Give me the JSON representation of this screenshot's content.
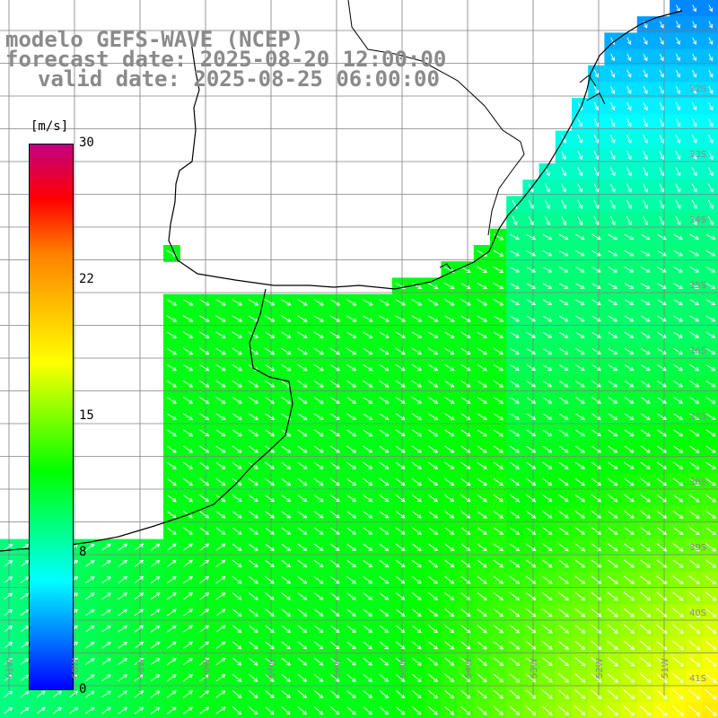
{
  "map": {
    "title_lines": [
      "modelo GEFS-WAVE (NCEP)",
      "forecast date: 2025-08-20 12:00:00",
      "valid date: 2025-08-25 06:00:00"
    ],
    "variable_unit": "[m/s]",
    "colorbar": {
      "range": [
        0,
        30
      ],
      "tick_labels": [
        "30",
        "22",
        "15",
        "8",
        "0"
      ],
      "colors": [
        "#0000ff",
        "#0080ff",
        "#00ffff",
        "#00ff80",
        "#00ff00",
        "#80ff00",
        "#ffff00",
        "#ffc000",
        "#ff8000",
        "#ff0000",
        "#c00080"
      ]
    },
    "grid": {
      "lat_labels": [
        "32S",
        "33S",
        "34S",
        "35S",
        "36S",
        "37S",
        "38S",
        "39S",
        "40S",
        "41S"
      ],
      "lon_labels": [
        "61W",
        "60W",
        "59W",
        "58W",
        "57W",
        "56W",
        "55W",
        "54W",
        "53W",
        "52W",
        "51W",
        "50W"
      ],
      "line_color": "#808080"
    },
    "land_color": "#ffffff",
    "coast_color": "#000000",
    "arrow_color": "#ffffff"
  }
}
